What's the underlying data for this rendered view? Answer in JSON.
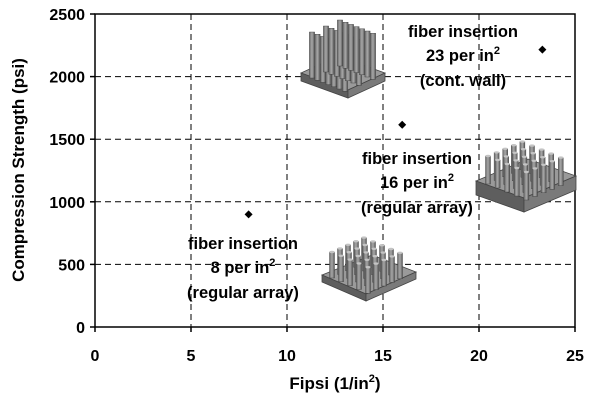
{
  "chart_data": {
    "type": "scatter",
    "x": [
      8,
      16,
      23.3
    ],
    "y": [
      900,
      1615,
      2215
    ],
    "xlabel": "Fipsi (1/in",
    "xlabel_sup": "2",
    "xlabel_tail": ")",
    "ylabel": "Compression Strength (psi)",
    "xlim": [
      0,
      25
    ],
    "ylim": [
      0,
      2500
    ],
    "xticks": [
      "0",
      "5",
      "10",
      "15",
      "20",
      "25"
    ],
    "yticks": [
      "0",
      "500",
      "1000",
      "1500",
      "2000",
      "2500"
    ],
    "grid": true,
    "marker_color": "#000000",
    "annotations": [
      {
        "line1": "fiber insertion",
        "line2_pre": "8 per in",
        "line2_sup": "2",
        "line3": "(regular array)"
      },
      {
        "line1": "fiber insertion",
        "line2_pre": "16 per in",
        "line2_sup": "2",
        "line3": "(regular array)"
      },
      {
        "line1": "fiber insertion",
        "line2_pre": "23 per in",
        "line2_sup": "2",
        "line3": "(cont. wall)"
      }
    ]
  }
}
